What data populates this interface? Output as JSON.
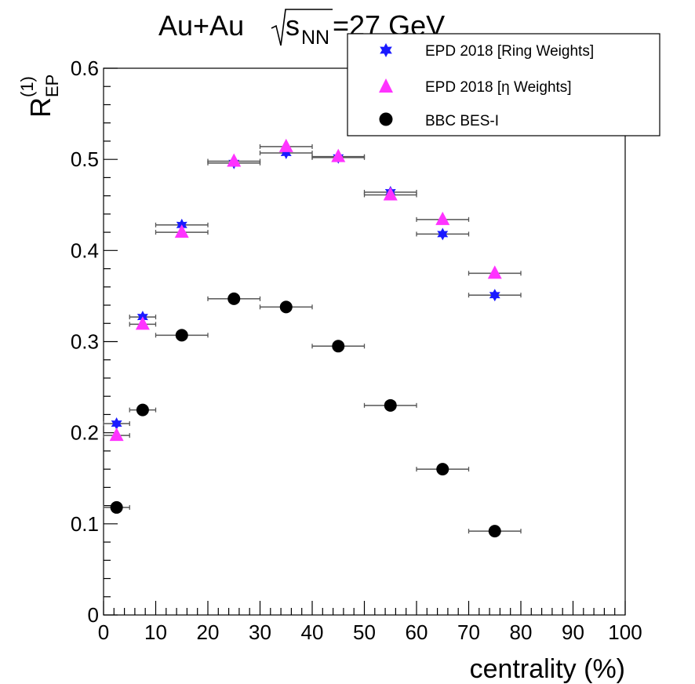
{
  "chart_data": {
    "type": "scatter",
    "title": "Au+Au",
    "title_energy_prefix": "s",
    "title_energy_sub": "NN",
    "title_energy_suffix": "=27 GeV",
    "xlabel": "centrality (%)",
    "ylabel": {
      "main": "R",
      "superscript": "(1)",
      "subscript": "EP"
    },
    "xlim": [
      0,
      100
    ],
    "ylim": [
      0,
      0.6
    ],
    "xticks": [
      "0",
      "10",
      "20",
      "30",
      "40",
      "50",
      "60",
      "70",
      "80",
      "90",
      "100"
    ],
    "yticks": [
      "0",
      "0.1",
      "0.2",
      "0.3",
      "0.4",
      "0.5",
      "0.6"
    ],
    "grid": false,
    "legend_position": "top-right",
    "series": [
      {
        "name": "EPD 2018 [Ring Weights]",
        "marker": "star",
        "color": "#1a1aff",
        "points": [
          {
            "x": 2.5,
            "y": 0.21,
            "xerr": 2.5
          },
          {
            "x": 7.5,
            "y": 0.327,
            "xerr": 2.5
          },
          {
            "x": 15,
            "y": 0.428,
            "xerr": 5
          },
          {
            "x": 25,
            "y": 0.496,
            "xerr": 5
          },
          {
            "x": 35,
            "y": 0.507,
            "xerr": 5
          },
          {
            "x": 45,
            "y": 0.502,
            "xerr": 5
          },
          {
            "x": 55,
            "y": 0.464,
            "xerr": 5
          },
          {
            "x": 65,
            "y": 0.418,
            "xerr": 5
          },
          {
            "x": 75,
            "y": 0.351,
            "xerr": 5
          }
        ]
      },
      {
        "name": "EPD 2018 [η Weights]",
        "marker": "triangle",
        "color": "#ff33ff",
        "points": [
          {
            "x": 2.5,
            "y": 0.197,
            "xerr": 2.5
          },
          {
            "x": 7.5,
            "y": 0.319,
            "xerr": 2.5
          },
          {
            "x": 15,
            "y": 0.42,
            "xerr": 5
          },
          {
            "x": 25,
            "y": 0.498,
            "xerr": 5
          },
          {
            "x": 35,
            "y": 0.514,
            "xerr": 5
          },
          {
            "x": 45,
            "y": 0.503,
            "xerr": 5
          },
          {
            "x": 55,
            "y": 0.461,
            "xerr": 5
          },
          {
            "x": 65,
            "y": 0.434,
            "xerr": 5
          },
          {
            "x": 75,
            "y": 0.375,
            "xerr": 5
          }
        ]
      },
      {
        "name": "BBC BES-I",
        "marker": "circle",
        "color": "#000000",
        "points": [
          {
            "x": 2.5,
            "y": 0.118,
            "xerr": 2.5
          },
          {
            "x": 7.5,
            "y": 0.225,
            "xerr": 2.5
          },
          {
            "x": 15,
            "y": 0.307,
            "xerr": 5
          },
          {
            "x": 25,
            "y": 0.347,
            "xerr": 5
          },
          {
            "x": 35,
            "y": 0.338,
            "xerr": 5
          },
          {
            "x": 45,
            "y": 0.295,
            "xerr": 5
          },
          {
            "x": 55,
            "y": 0.23,
            "xerr": 5
          },
          {
            "x": 65,
            "y": 0.16,
            "xerr": 5
          },
          {
            "x": 75,
            "y": 0.092,
            "xerr": 5
          }
        ]
      }
    ]
  }
}
